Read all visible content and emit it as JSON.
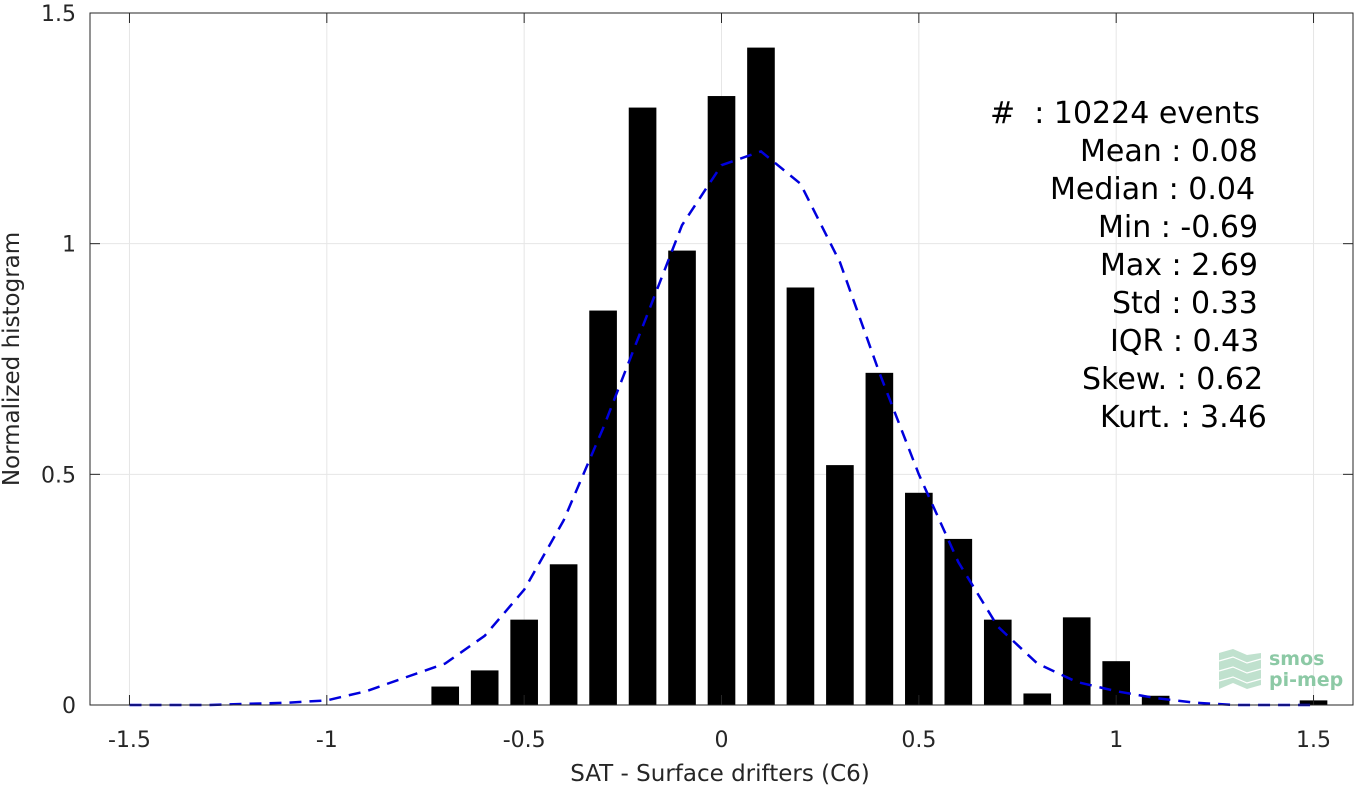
{
  "chart_data": {
    "type": "bar",
    "title": "",
    "xlabel": "SAT - Surface drifters (C6)",
    "ylabel": "Normalized histogram",
    "xlim": [
      -1.6,
      1.6
    ],
    "ylim": [
      0,
      1.5
    ],
    "grid": true,
    "xticks": [
      "-1.5",
      "-1",
      "-0.5",
      "0",
      "0.5",
      "1",
      "1.5"
    ],
    "yticks": [
      "0",
      "0.5",
      "1",
      "1.5"
    ],
    "series": [
      {
        "kind": "bar",
        "color": "#000000",
        "x": [
          -0.7,
          -0.6,
          -0.5,
          -0.4,
          -0.3,
          -0.2,
          -0.1,
          0.0,
          0.1,
          0.2,
          0.3,
          0.4,
          0.5,
          0.6,
          0.7,
          0.8,
          0.9,
          1.0,
          1.1,
          1.5
        ],
        "values": [
          0.04,
          0.075,
          0.185,
          0.305,
          0.855,
          1.295,
          0.985,
          1.32,
          1.425,
          0.905,
          0.52,
          0.72,
          0.46,
          0.36,
          0.185,
          0.025,
          0.19,
          0.095,
          0.02,
          0.01
        ]
      },
      {
        "kind": "line",
        "style": "dashed",
        "color": "#0000dd",
        "x": [
          -1.5,
          -1.3,
          -1.1,
          -1.0,
          -0.9,
          -0.8,
          -0.7,
          -0.6,
          -0.5,
          -0.4,
          -0.3,
          -0.2,
          -0.1,
          0.0,
          0.1,
          0.2,
          0.3,
          0.4,
          0.5,
          0.6,
          0.7,
          0.8,
          0.9,
          1.0,
          1.1,
          1.2,
          1.3,
          1.5
        ],
        "values": [
          0.0,
          0.0,
          0.005,
          0.01,
          0.03,
          0.06,
          0.09,
          0.15,
          0.25,
          0.4,
          0.6,
          0.82,
          1.04,
          1.17,
          1.2,
          1.13,
          0.96,
          0.72,
          0.5,
          0.31,
          0.17,
          0.09,
          0.05,
          0.03,
          0.015,
          0.005,
          0.0,
          0.0
        ]
      }
    ]
  },
  "stats": [
    {
      "label": "#  : 10224 events"
    },
    {
      "label": "Mean : 0.08"
    },
    {
      "label": "Median : 0.04"
    },
    {
      "label": "Min : -0.69"
    },
    {
      "label": "Max : 2.69"
    },
    {
      "label": "Std : 0.33"
    },
    {
      "label": "IQR : 0.43"
    },
    {
      "label": "Skew. : 0.62"
    },
    {
      "label": "Kurt. : 3.46"
    }
  ],
  "logo": {
    "line1": "smos",
    "line2": "pi-mep",
    "color": "#8cc9a5"
  }
}
